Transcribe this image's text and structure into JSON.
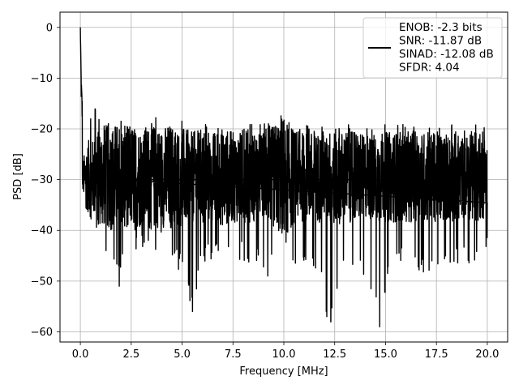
{
  "chart_data": {
    "type": "line",
    "xlabel": "Frequency [MHz]",
    "ylabel": "PSD [dB]",
    "xlim": [
      -1.0,
      21.0
    ],
    "ylim": [
      -62.0,
      3.0
    ],
    "xticks": [
      0.0,
      2.5,
      5.0,
      7.5,
      10.0,
      12.5,
      15.0,
      17.5,
      20.0
    ],
    "xtick_labels": [
      "0.0",
      "2.5",
      "5.0",
      "7.5",
      "10.0",
      "12.5",
      "15.0",
      "17.5",
      "20.0"
    ],
    "yticks": [
      0,
      -10,
      -20,
      -30,
      -40,
      -50,
      -60
    ],
    "ytick_labels": [
      "0",
      "−10",
      "−20",
      "−30",
      "−40",
      "−50",
      "−60"
    ],
    "grid": true,
    "legend_position": "top-right",
    "series": [
      {
        "name": "ENOB: -2.3 bits\nSNR: -11.87 dB\nSINAD: -12.08 dB\nSFDR: 4.04",
        "color": "#000000",
        "x": [
          0.0,
          0.02,
          0.04,
          0.06,
          0.08,
          0.1,
          0.15,
          0.2,
          0.25,
          0.3,
          0.4,
          0.5,
          0.6,
          0.8,
          1.0,
          1.2,
          1.5,
          1.9,
          2.2,
          2.6,
          3.0,
          3.5,
          4.0,
          4.4,
          5.0,
          5.5,
          6.0,
          6.5,
          7.0,
          7.5,
          8.0,
          8.5,
          9.2,
          10.0,
          10.6,
          11.2,
          11.8,
          12.1,
          12.3,
          13.0,
          13.5,
          14.0,
          14.7,
          15.2,
          15.8,
          16.4,
          17.0,
          17.6,
          18.2,
          18.8,
          19.4,
          20.0
        ],
        "y": [
          0,
          -5,
          -10,
          -12,
          -15,
          -19,
          -22,
          -24,
          -25,
          -26,
          -27,
          -26,
          -28,
          -24,
          -30,
          -27,
          -29,
          -51,
          -28,
          -30,
          -27,
          -29,
          -28,
          -31,
          -30,
          -56,
          -29,
          -30,
          -28,
          -31,
          -29,
          -30,
          -49,
          -28,
          -30,
          -29,
          -31,
          -57,
          -58,
          -30,
          -29,
          -31,
          -59,
          -30,
          -29,
          -31,
          -30,
          -29,
          -31,
          -30,
          -29,
          -30
        ],
        "envelope_upper": [
          0,
          -5,
          -10,
          -12,
          -14,
          -15,
          -16,
          -15,
          -16,
          -17,
          -16,
          -17,
          -15,
          -16,
          -17,
          -18,
          -17,
          -17,
          -18,
          -17,
          -18,
          -17,
          -18,
          -17,
          -18,
          -19,
          -18,
          -19,
          -18,
          -19,
          -19,
          -19,
          -19,
          -15,
          -19,
          -19,
          -19,
          -20,
          -18,
          -19,
          -19,
          -20,
          -19,
          -19,
          -19,
          -19,
          -19,
          -19,
          -19,
          -20,
          -19,
          -20
        ],
        "envelope_lower": [
          0,
          -20,
          -25,
          -28,
          -30,
          -32,
          -34,
          -35,
          -36,
          -37,
          -38,
          -39,
          -38,
          -40,
          -41,
          -44,
          -46,
          -51,
          -42,
          -44,
          -43,
          -45,
          -44,
          -45,
          -49,
          -56,
          -47,
          -46,
          -45,
          -47,
          -46,
          -47,
          -49,
          -46,
          -47,
          -48,
          -50,
          -57,
          -59,
          -48,
          -49,
          -50,
          -59,
          -48,
          -47,
          -48,
          -49,
          -50,
          -48,
          -47,
          -48,
          -45
        ]
      }
    ]
  }
}
